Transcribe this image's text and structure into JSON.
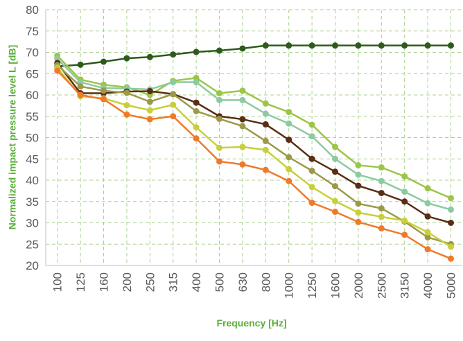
{
  "chart_data": {
    "type": "line",
    "x_label": "Frequency [Hz]",
    "y_label": "Normalized impact pressure level L [dB]",
    "categories": [
      "100",
      "125",
      "160",
      "200",
      "250",
      "315",
      "400",
      "500",
      "630",
      "800",
      "1000",
      "1250",
      "1600",
      "2000",
      "2500",
      "3150",
      "4000",
      "5000"
    ],
    "ylim": [
      20,
      80
    ],
    "yticks": [
      20,
      25,
      30,
      35,
      40,
      45,
      50,
      55,
      60,
      65,
      70,
      75,
      80
    ],
    "grid": true,
    "series": [
      {
        "color": "#2e5a1c",
        "values": [
          66.7,
          67.1,
          67.8,
          68.6,
          68.9,
          69.5,
          70.1,
          70.4,
          70.9,
          71.6,
          71.6,
          71.6,
          71.6,
          71.6,
          71.6,
          71.6,
          71.6,
          71.6
        ]
      },
      {
        "color": "#9cc54a",
        "values": [
          69.2,
          63.6,
          62.4,
          61.8,
          60.0,
          63.3,
          64.0,
          60.4,
          61.0,
          58.0,
          56.0,
          53.0,
          47.8,
          43.5,
          43.0,
          40.9,
          38.1,
          35.8
        ]
      },
      {
        "color": "#8ccaa0",
        "values": [
          68.5,
          63.0,
          61.6,
          61.5,
          61.3,
          63.0,
          63.0,
          58.8,
          58.8,
          55.6,
          53.3,
          50.3,
          45.0,
          41.3,
          39.8,
          37.3,
          34.6,
          33.1
        ]
      },
      {
        "color": "#5a2d14",
        "values": [
          67.5,
          60.4,
          60.4,
          60.8,
          60.9,
          60.2,
          58.2,
          55.0,
          54.3,
          53.1,
          49.5,
          45.0,
          42.0,
          38.7,
          37.0,
          35.0,
          31.5,
          30.0
        ]
      },
      {
        "color": "#9c9a48",
        "values": [
          67.0,
          62.0,
          61.0,
          60.5,
          58.4,
          60.2,
          56.2,
          54.4,
          52.7,
          49.2,
          45.4,
          42.2,
          38.6,
          34.5,
          33.4,
          30.3,
          26.6,
          25.0
        ]
      },
      {
        "color": "#c8cf3a",
        "values": [
          66.4,
          59.7,
          59.2,
          57.6,
          56.4,
          57.7,
          52.4,
          47.6,
          47.8,
          47.1,
          42.6,
          38.4,
          35.1,
          32.4,
          31.4,
          30.5,
          27.8,
          24.4
        ]
      },
      {
        "color": "#f07a2a",
        "values": [
          65.7,
          60.0,
          59.0,
          55.4,
          54.3,
          55.0,
          49.8,
          44.4,
          43.7,
          42.4,
          39.8,
          34.7,
          32.6,
          30.2,
          28.7,
          27.2,
          23.8,
          21.6
        ]
      }
    ]
  }
}
